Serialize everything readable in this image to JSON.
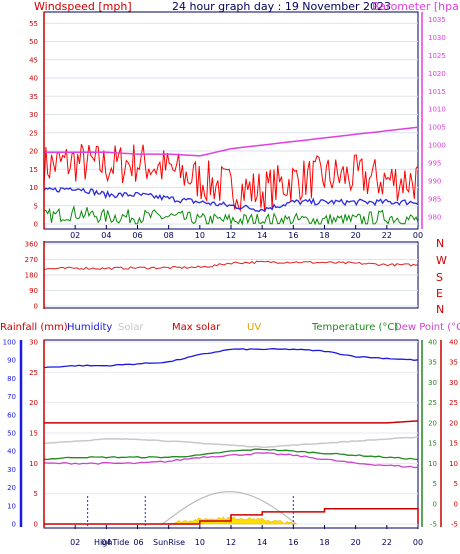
{
  "colors": {
    "wind_red": "#ff0000",
    "wind_blue": "#2b2bdd",
    "wind_green": "#0a8a0a",
    "barometer": "#e040e0",
    "dir_red": "#dd2222",
    "humidity": "#1a1ae0",
    "solar": "#c8c8c8",
    "maxsolar": "#cc0000",
    "uv": "#ffdd00",
    "temp": "#228822",
    "dew": "#cc44cc",
    "rain": "#cc0000",
    "frame": "#000060"
  },
  "header": {
    "left": "Windspeed [mph]",
    "center": "24 hour graph day : 19 November 2023",
    "right": "Barometer [hpa]"
  },
  "panel3_header": {
    "rain": "Rainfall (mm)",
    "humidity": "Humidity",
    "solar": "Solar",
    "maxsolar": "Max solar",
    "uv": "UV",
    "temp": "Temperature (°C)",
    "dew": "Dew Point (°C)"
  },
  "direction_labels": [
    "N",
    "W",
    "S",
    "E",
    "N"
  ],
  "x_tick_labels": [
    "02",
    "04",
    "06",
    "08",
    "10",
    "12",
    "14",
    "16",
    "18",
    "20",
    "22",
    "00"
  ],
  "event_labels": {
    "high_tide": "HighTide",
    "sunrise": "SunRise"
  },
  "chart_data": [
    {
      "type": "line",
      "name": "wind-barometer",
      "x_hours": [
        0,
        2,
        4,
        6,
        8,
        10,
        12,
        14,
        16,
        18,
        20,
        22,
        24
      ],
      "series": [
        {
          "name": "Windspeed",
          "axis": "left",
          "values": [
            16,
            17,
            16,
            17,
            15,
            12,
            10,
            9,
            12,
            13,
            13,
            12,
            12
          ]
        },
        {
          "name": "Average",
          "axis": "left",
          "values": [
            9,
            10,
            8,
            8,
            7,
            6,
            5,
            4,
            6,
            6,
            6,
            6,
            6
          ]
        },
        {
          "name": "Gust",
          "axis": "left",
          "values": [
            2,
            3,
            2,
            2,
            2,
            1,
            1,
            1,
            1,
            1,
            1,
            2,
            1
          ]
        },
        {
          "name": "Barometer",
          "axis": "right",
          "values": [
            998,
            998,
            998,
            997.5,
            997.5,
            997,
            999,
            1000,
            1001,
            1002,
            1003,
            1004,
            1005
          ]
        }
      ],
      "left_ticks": [
        "0",
        "5",
        "10",
        "15",
        "20",
        "25",
        "30",
        "35",
        "40",
        "45",
        "50",
        "55"
      ],
      "left_ylim": [
        0,
        57
      ],
      "right_ticks": [
        "980",
        "985",
        "990",
        "995",
        "1000",
        "1005",
        "1010",
        "1015",
        "1020",
        "1025",
        "1030",
        "1035"
      ],
      "right_ylim": [
        978,
        1036
      ]
    },
    {
      "type": "line",
      "name": "wind-direction",
      "x_hours": [
        0,
        2,
        4,
        6,
        8,
        10,
        11,
        12,
        14,
        16,
        18,
        20,
        22,
        24
      ],
      "series": [
        {
          "name": "Direction",
          "values": [
            215,
            220,
            218,
            222,
            222,
            225,
            235,
            250,
            255,
            255,
            252,
            248,
            240,
            238
          ]
        }
      ],
      "left_ticks": [
        "0",
        "90",
        "180",
        "270",
        "360"
      ],
      "ylim": [
        0,
        360
      ]
    },
    {
      "type": "line",
      "name": "climate",
      "x_hours": [
        0,
        2,
        4,
        6,
        8,
        10,
        12,
        14,
        16,
        18,
        20,
        22,
        24
      ],
      "series": [
        {
          "name": "Humidity",
          "axis": "humidity",
          "values": [
            86,
            87,
            87,
            88,
            89,
            93,
            96,
            96,
            96,
            95,
            92,
            91,
            90
          ]
        },
        {
          "name": "Max solar",
          "axis": "temp",
          "values": [
            20,
            20,
            20,
            20,
            20,
            20,
            20,
            20,
            20,
            20,
            20,
            20,
            20.5
          ]
        },
        {
          "name": "Solar",
          "axis": "temp",
          "values": [
            15,
            15.5,
            16,
            16,
            15.5,
            15,
            14.5,
            14,
            14.5,
            15,
            15.5,
            16,
            16.5
          ]
        },
        {
          "name": "Temperature",
          "axis": "temp",
          "values": [
            11,
            11.5,
            11.5,
            11.5,
            11.5,
            12,
            13,
            13.5,
            13,
            12.5,
            12,
            11.5,
            11
          ]
        },
        {
          "name": "Dew Point",
          "axis": "temp",
          "values": [
            10,
            10,
            10,
            10,
            10.5,
            11.5,
            12,
            12.5,
            12,
            11,
            10,
            9.5,
            9
          ]
        },
        {
          "name": "Rainfall",
          "axis": "rain",
          "values": [
            0,
            0,
            0,
            0,
            0,
            0.5,
            1.5,
            2,
            2,
            2.5,
            2.5,
            2.5,
            2.5
          ]
        }
      ],
      "rain_ticks": [
        "0",
        "5",
        "10",
        "15",
        "20",
        "25",
        "30"
      ],
      "rain_ylim": [
        0,
        30
      ],
      "humidity_ticks": [
        "0",
        "10",
        "20",
        "30",
        "40",
        "50",
        "60",
        "70",
        "80",
        "90",
        "100"
      ],
      "humidity_ylim": [
        0,
        100
      ],
      "temp_ticks": [
        "-5",
        "0",
        "5",
        "10",
        "15",
        "20",
        "25",
        "30",
        "35",
        "40"
      ],
      "temp_ylim": [
        -5,
        40
      ]
    }
  ]
}
